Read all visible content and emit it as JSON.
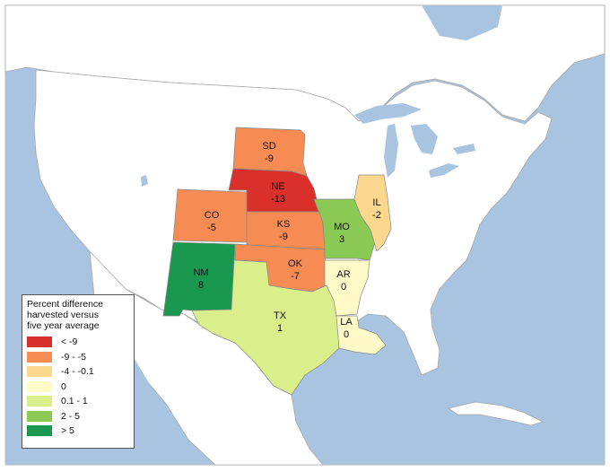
{
  "colors": {
    "ocean": "#a9c4e0",
    "land": "#ffffff",
    "border": "#a8a8a8"
  },
  "states": [
    {
      "code": "SD",
      "value": "-9",
      "color": "#f68c53"
    },
    {
      "code": "NE",
      "value": "-13",
      "color": "#d9302b"
    },
    {
      "code": "CO",
      "value": "-5",
      "color": "#f68c53"
    },
    {
      "code": "KS",
      "value": "-9",
      "color": "#f68c53"
    },
    {
      "code": "MO",
      "value": "3",
      "color": "#8bc955"
    },
    {
      "code": "IL",
      "value": "-2",
      "color": "#fbd88e"
    },
    {
      "code": "OK",
      "value": "-7",
      "color": "#f68c53"
    },
    {
      "code": "AR",
      "value": "0",
      "color": "#fffac8"
    },
    {
      "code": "NM",
      "value": "8",
      "color": "#1a9850"
    },
    {
      "code": "TX",
      "value": "1",
      "color": "#dbee8c"
    },
    {
      "code": "LA",
      "value": "0",
      "color": "#fffac8"
    }
  ],
  "legend": {
    "title_lines": [
      "Percent difference",
      "harvested versus",
      "five year average"
    ],
    "items": [
      {
        "label": "< -9",
        "color": "#d9302b"
      },
      {
        "label": "-9 - -5",
        "color": "#f68c53"
      },
      {
        "label": "-4 - -0.1",
        "color": "#fbd88e"
      },
      {
        "label": "0",
        "color": "#fffac8"
      },
      {
        "label": "0.1 - 1",
        "color": "#dbee8c"
      },
      {
        "label": "2 - 5",
        "color": "#8bc955"
      },
      {
        "label": "> 5",
        "color": "#1a9850"
      }
    ]
  }
}
